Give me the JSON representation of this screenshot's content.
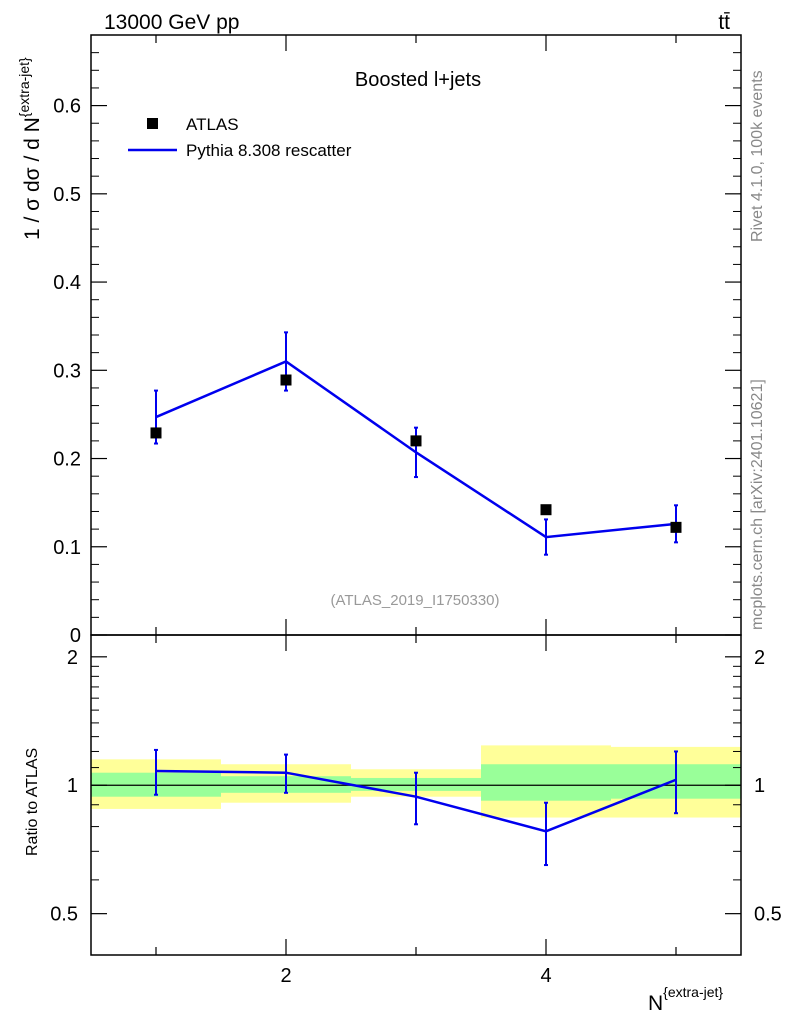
{
  "header": {
    "energy": "13000 GeV pp",
    "process": "tt̄"
  },
  "side_labels": {
    "rivet": "Rivet 4.1.0,  100k events",
    "mcplots": "mcplots.cern.ch [arXiv:2401.10621]"
  },
  "chart_data": [
    {
      "type": "line",
      "title": "Boosted l+jets",
      "watermark": "(ATLAS_2019_I1750330)",
      "ylabel": "1 / σ dσ / d N",
      "ylabel_sup": "{extra-jet}",
      "ylim": [
        0,
        0.68
      ],
      "yticks": [
        0,
        0.1,
        0.2,
        0.3,
        0.4,
        0.5,
        0.6
      ],
      "ytick_labels": [
        "0",
        "0.1",
        "0.2",
        "0.3",
        "0.4",
        "0.5",
        "0.6"
      ],
      "xlim": [
        0.5,
        5.5
      ],
      "bin_edges": [
        0.5,
        1.5,
        2.5,
        3.5,
        4.5,
        5.5
      ],
      "x": [
        1,
        2,
        3,
        4,
        5
      ],
      "legend": {
        "position": "top-left",
        "entries": [
          "ATLAS",
          "Pythia 8.308 rescatter"
        ]
      },
      "series": [
        {
          "name": "ATLAS",
          "marker": "square",
          "color": "#000000",
          "values": [
            0.229,
            0.289,
            0.22,
            0.142,
            0.122
          ]
        },
        {
          "name": "Pythia 8.308 rescatter",
          "color": "#0000ee",
          "values": [
            0.247,
            0.31,
            0.207,
            0.111,
            0.126
          ],
          "err_low": [
            0.03,
            0.033,
            0.028,
            0.02,
            0.021
          ],
          "err_high": [
            0.03,
            0.033,
            0.028,
            0.02,
            0.021
          ]
        }
      ]
    },
    {
      "type": "line",
      "ylabel": "Ratio to ATLAS",
      "xlabel": "N",
      "xlabel_sup": "{extra-jet}",
      "ylim": [
        0.4,
        2.25
      ],
      "yscale": "log",
      "yticks": [
        0.5,
        1,
        2
      ],
      "ytick_labels": [
        "0.5",
        "1",
        "2"
      ],
      "xticks": [
        2,
        4
      ],
      "xtick_labels": [
        "2",
        "4"
      ],
      "reference": 1,
      "bands": {
        "inner_color": "#99ff99",
        "outer_color": "#ffff99",
        "inner_low": [
          0.94,
          0.96,
          0.97,
          0.92,
          0.93
        ],
        "inner_high": [
          1.07,
          1.05,
          1.04,
          1.12,
          1.12
        ],
        "outer_low": [
          0.88,
          0.91,
          0.94,
          0.84,
          0.84
        ],
        "outer_high": [
          1.15,
          1.12,
          1.09,
          1.24,
          1.23
        ]
      },
      "series": [
        {
          "name": "Pythia 8.308 rescatter",
          "color": "#0000ee",
          "values": [
            1.08,
            1.07,
            0.94,
            0.78,
            1.03
          ],
          "err_low": [
            0.13,
            0.11,
            0.13,
            0.13,
            0.17
          ],
          "err_high": [
            0.13,
            0.11,
            0.13,
            0.13,
            0.17
          ]
        }
      ]
    }
  ]
}
